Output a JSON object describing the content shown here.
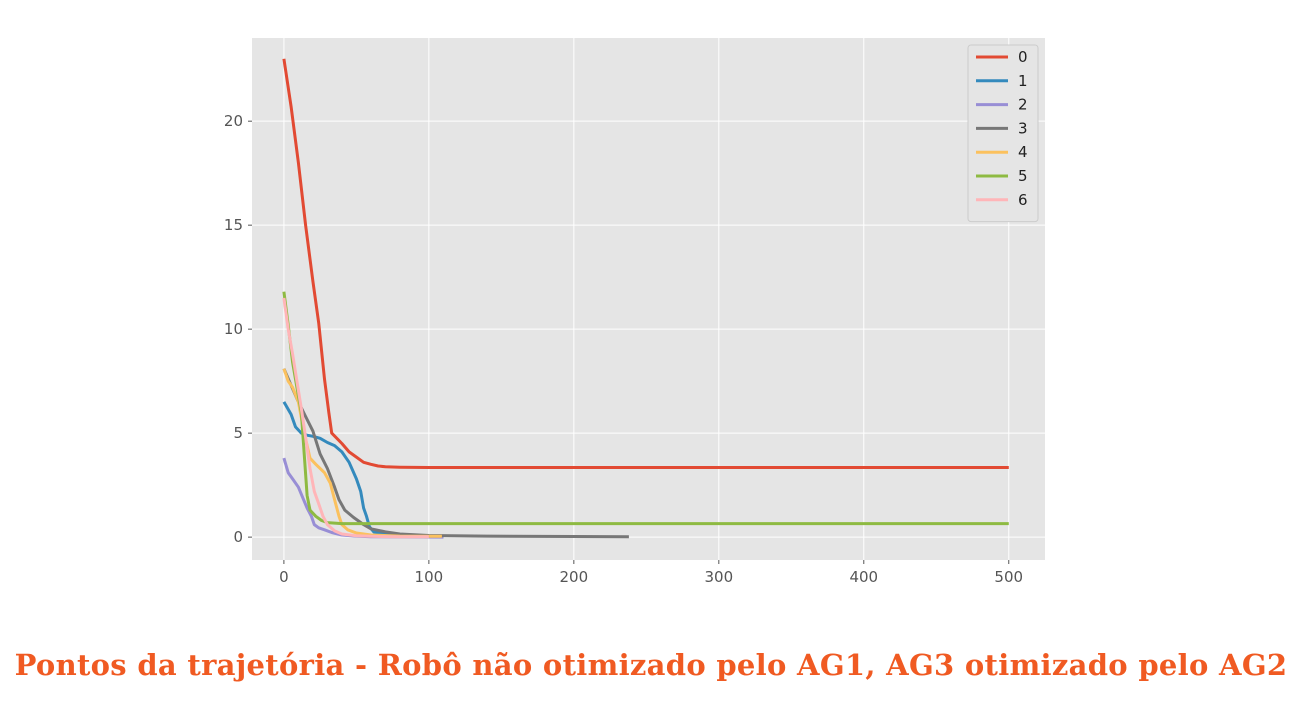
{
  "caption": "Pontos da trajetória - Robô não otimizado pelo AG1, AG3 otimizado pelo AG2",
  "colors": {
    "plot_background": "#e5e5e5",
    "grid": "#ffffff",
    "caption": "#f05a22"
  },
  "chart_data": {
    "type": "line",
    "title": "",
    "xlabel": "",
    "ylabel": "",
    "xlim": [
      -22,
      525
    ],
    "ylim": [
      -1.1,
      24.0
    ],
    "x_ticks": [
      0,
      100,
      200,
      300,
      400,
      500
    ],
    "y_ticks": [
      0,
      5,
      10,
      15,
      20
    ],
    "grid": true,
    "legend_position": "top-right",
    "series": [
      {
        "name": "0",
        "color": "#e24a33",
        "points": [
          [
            0,
            23.0
          ],
          [
            5,
            20.7
          ],
          [
            10,
            18.0
          ],
          [
            15,
            15.0
          ],
          [
            20,
            12.3
          ],
          [
            24,
            10.3
          ],
          [
            28,
            7.6
          ],
          [
            31,
            6.0
          ],
          [
            33,
            5.0
          ],
          [
            40,
            4.5
          ],
          [
            45,
            4.1
          ],
          [
            50,
            3.85
          ],
          [
            55,
            3.6
          ],
          [
            60,
            3.5
          ],
          [
            65,
            3.42
          ],
          [
            70,
            3.38
          ],
          [
            80,
            3.36
          ],
          [
            100,
            3.35
          ],
          [
            200,
            3.35
          ],
          [
            300,
            3.35
          ],
          [
            400,
            3.35
          ],
          [
            500,
            3.35
          ]
        ]
      },
      {
        "name": "1",
        "color": "#348abd",
        "points": [
          [
            0,
            6.5
          ],
          [
            5,
            5.9
          ],
          [
            8,
            5.3
          ],
          [
            12,
            5.0
          ],
          [
            16,
            4.9
          ],
          [
            20,
            4.85
          ],
          [
            25,
            4.75
          ],
          [
            30,
            4.55
          ],
          [
            35,
            4.4
          ],
          [
            40,
            4.1
          ],
          [
            45,
            3.6
          ],
          [
            50,
            2.8
          ],
          [
            53,
            2.2
          ],
          [
            55,
            1.4
          ],
          [
            57,
            1.0
          ],
          [
            59,
            0.5
          ],
          [
            62,
            0.25
          ],
          [
            70,
            0.12
          ],
          [
            80,
            0.06
          ],
          [
            90,
            0.03
          ],
          [
            100,
            0.02
          ],
          [
            110,
            0.02
          ]
        ]
      },
      {
        "name": "2",
        "color": "#988ed5",
        "points": [
          [
            0,
            3.8
          ],
          [
            3,
            3.1
          ],
          [
            6,
            2.8
          ],
          [
            10,
            2.4
          ],
          [
            13,
            1.9
          ],
          [
            16,
            1.4
          ],
          [
            19,
            1.0
          ],
          [
            21,
            0.6
          ],
          [
            24,
            0.45
          ],
          [
            28,
            0.35
          ],
          [
            33,
            0.22
          ],
          [
            40,
            0.1
          ],
          [
            50,
            0.05
          ],
          [
            60,
            0.02
          ],
          [
            80,
            0.01
          ],
          [
            110,
            0.0
          ]
        ]
      },
      {
        "name": "3",
        "color": "#777777",
        "points": [
          [
            0,
            8.1
          ],
          [
            5,
            7.3
          ],
          [
            10,
            6.5
          ],
          [
            15,
            5.8
          ],
          [
            20,
            5.1
          ],
          [
            25,
            4.0
          ],
          [
            30,
            3.3
          ],
          [
            35,
            2.4
          ],
          [
            38,
            1.8
          ],
          [
            42,
            1.3
          ],
          [
            48,
            0.95
          ],
          [
            55,
            0.6
          ],
          [
            60,
            0.4
          ],
          [
            70,
            0.25
          ],
          [
            80,
            0.15
          ],
          [
            100,
            0.08
          ],
          [
            140,
            0.05
          ],
          [
            200,
            0.03
          ],
          [
            238,
            0.02
          ]
        ]
      },
      {
        "name": "4",
        "color": "#fbc15e",
        "points": [
          [
            0,
            8.1
          ],
          [
            3,
            7.5
          ],
          [
            6,
            7.2
          ],
          [
            10,
            6.5
          ],
          [
            14,
            5.0
          ],
          [
            18,
            3.8
          ],
          [
            22,
            3.5
          ],
          [
            28,
            3.1
          ],
          [
            32,
            2.6
          ],
          [
            35,
            1.8
          ],
          [
            38,
            1.0
          ],
          [
            40,
            0.6
          ],
          [
            44,
            0.35
          ],
          [
            50,
            0.2
          ],
          [
            60,
            0.1
          ],
          [
            80,
            0.05
          ],
          [
            100,
            0.04
          ],
          [
            109,
            0.04
          ]
        ]
      },
      {
        "name": "5",
        "color": "#8eba42",
        "points": [
          [
            0,
            11.8
          ],
          [
            3,
            10.2
          ],
          [
            6,
            8.4
          ],
          [
            9,
            7.2
          ],
          [
            12,
            6.0
          ],
          [
            14,
            4.0
          ],
          [
            16,
            2.0
          ],
          [
            18,
            1.3
          ],
          [
            22,
            1.0
          ],
          [
            26,
            0.8
          ],
          [
            30,
            0.7
          ],
          [
            40,
            0.65
          ],
          [
            60,
            0.65
          ],
          [
            100,
            0.65
          ],
          [
            200,
            0.65
          ],
          [
            300,
            0.65
          ],
          [
            400,
            0.65
          ],
          [
            500,
            0.65
          ]
        ]
      },
      {
        "name": "6",
        "color": "#ffb5b8",
        "points": [
          [
            0,
            11.5
          ],
          [
            3,
            10.0
          ],
          [
            6,
            8.8
          ],
          [
            9,
            7.5
          ],
          [
            12,
            6.2
          ],
          [
            15,
            4.8
          ],
          [
            18,
            3.3
          ],
          [
            21,
            2.2
          ],
          [
            24,
            1.6
          ],
          [
            27,
            1.0
          ],
          [
            30,
            0.6
          ],
          [
            35,
            0.3
          ],
          [
            40,
            0.15
          ],
          [
            50,
            0.07
          ],
          [
            60,
            0.04
          ],
          [
            80,
            0.02
          ],
          [
            100,
            0.02
          ]
        ]
      }
    ]
  }
}
